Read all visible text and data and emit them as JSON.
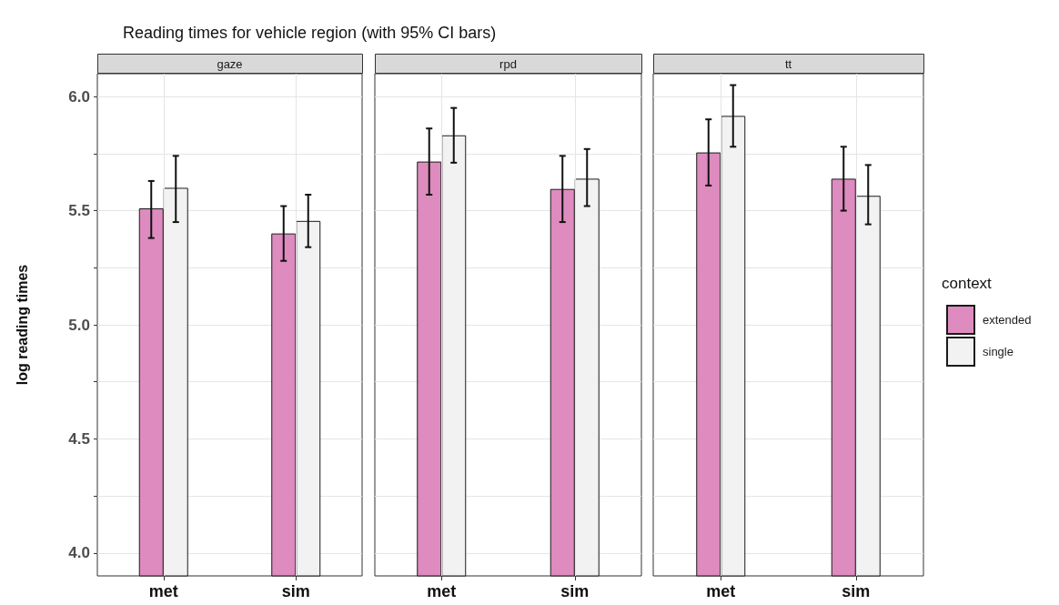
{
  "chart_data": [
    {
      "type": "bar",
      "title": "Reading times for vehicle region (with 95% CI bars)",
      "subtitle": "gaze",
      "ylabel": "log reading times",
      "categories": [
        "met",
        "sim"
      ],
      "ylim": [
        3.9,
        6.1
      ],
      "yticks": [
        {
          "value": 4,
          "label": "4.0"
        },
        {
          "value": 4.25,
          "label": null
        },
        {
          "value": 4.5,
          "label": "4.5"
        },
        {
          "value": 4.75,
          "label": null
        },
        {
          "value": 5,
          "label": "5.0"
        },
        {
          "value": 5.25,
          "label": null
        },
        {
          "value": 5.5,
          "label": "5.5"
        },
        {
          "value": 5.75,
          "label": null
        },
        {
          "value": 6,
          "label": "6.0"
        }
      ],
      "grid": true,
      "series": [
        {
          "color": "#de8bbf",
          "values": [
            5.51,
            5.4
          ],
          "errors": [
            [
              5.38,
              5.63
            ],
            [
              5.28,
              5.52
            ]
          ]
        },
        {
          "color": "#f2f2f2",
          "values": [
            5.6,
            5.455
          ],
          "errors": [
            [
              5.45,
              5.74
            ],
            [
              5.34,
              5.57
            ]
          ]
        }
      ]
    },
    {
      "type": "bar",
      "subtitle": "rpd",
      "categories": [
        "met",
        "sim"
      ],
      "ylim": [
        3.9,
        6.1
      ],
      "yticks": [
        4,
        4.25,
        4.5,
        4.75,
        5,
        5.25,
        5.5,
        5.75,
        6
      ],
      "grid": true,
      "tick_labels": "x",
      "series": [
        {
          "color": "#de8bbf",
          "values": [
            5.715,
            5.595
          ],
          "errors": [
            [
              5.57,
              5.86
            ],
            [
              5.45,
              5.74
            ]
          ]
        },
        {
          "color": "#f2f2f2",
          "values": [
            5.83,
            5.64
          ],
          "errors": [
            [
              5.71,
              5.95
            ],
            [
              5.52,
              5.77
            ]
          ]
        }
      ]
    },
    {
      "type": "bar",
      "subtitle": "tt",
      "categories": [
        "met",
        "sim"
      ],
      "ylim": [
        3.9,
        6.1
      ],
      "yticks": [
        4,
        4.25,
        4.5,
        4.75,
        5,
        5.25,
        5.5,
        5.75,
        6
      ],
      "grid": true,
      "legend": "right",
      "legend_title": "context",
      "tick_labels": "x",
      "series": [
        {
          "name": "extended",
          "color": "#de8bbf",
          "values": [
            5.755,
            5.64
          ],
          "errors": [
            [
              5.61,
              5.9
            ],
            [
              5.5,
              5.78
            ]
          ]
        },
        {
          "name": "single",
          "color": "#f2f2f2",
          "values": [
            5.915,
            5.565
          ],
          "errors": [
            [
              5.78,
              6.05
            ],
            [
              5.44,
              5.7
            ]
          ]
        }
      ]
    }
  ]
}
